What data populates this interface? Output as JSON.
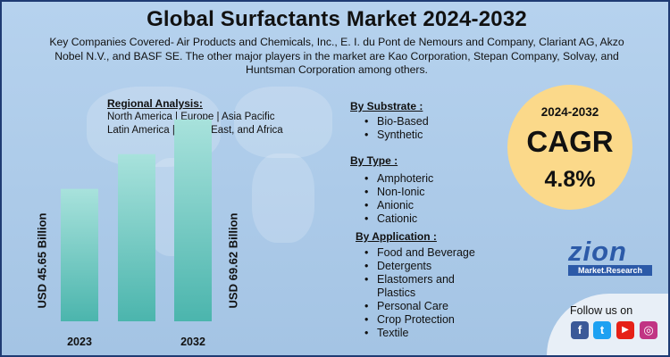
{
  "header": {
    "title": "Global Surfactants Market 2024-2032",
    "subtitle_lines": [
      "Key Companies Covered- Air Products and Chemicals, Inc., E. I. du Pont de Nemours and Company, Clariant AG, Akzo",
      "Nobel N.V., and BASF SE. The other major players in the market are Kao Corporation, Stepan Company, Solvay, and",
      "Huntsman Corporation among others."
    ]
  },
  "regional": {
    "heading": "Regional Analysis:",
    "lines": [
      "North America | Europe | Asia Pacific",
      "Latin America | Middle East, and Africa"
    ]
  },
  "chart_data": {
    "type": "bar",
    "categories": [
      "2023",
      "2032"
    ],
    "values": [
      45.65,
      69.62
    ],
    "value_labels": [
      "USD 45.65 Billion",
      "USD 69.62 Billion"
    ],
    "unit": "USD Billion",
    "ylim": [
      0,
      80
    ],
    "bar_color": "#6fc7c0"
  },
  "segments": [
    {
      "heading": "By Substrate :",
      "items": [
        "Bio-Based",
        "Synthetic"
      ]
    },
    {
      "heading": "By Type :",
      "items": [
        "Amphoteric",
        "Non-Ionic",
        "Anionic",
        "Cationic"
      ]
    },
    {
      "heading": "By Application :",
      "items": [
        "Food and Beverage",
        "Detergents",
        "Elastomers and Plastics",
        "Personal Care",
        "Crop Protection",
        "Textile"
      ]
    }
  ],
  "cagr": {
    "years": "2024-2032",
    "label": "CAGR",
    "value": "4.8%"
  },
  "brand": {
    "name": "zion",
    "sub": "Market.Research",
    "color": "#2c5aa8"
  },
  "social": {
    "follow_text": "Follow us on",
    "icons": [
      {
        "name": "facebook-icon",
        "glyph": "f",
        "color": "#3b5998"
      },
      {
        "name": "twitter-icon",
        "glyph": "t",
        "color": "#1da1f2"
      },
      {
        "name": "youtube-icon",
        "glyph": "▶",
        "color": "#e62117"
      },
      {
        "name": "instagram-icon",
        "glyph": "◎",
        "color": "#c13584"
      }
    ]
  }
}
